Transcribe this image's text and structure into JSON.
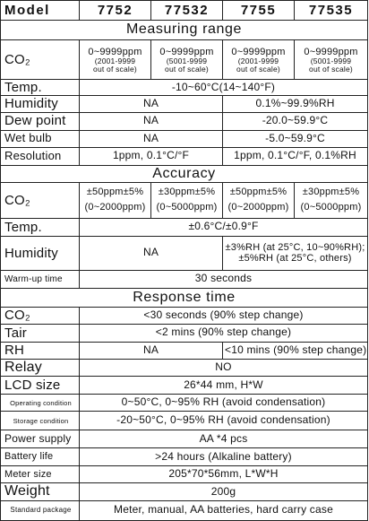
{
  "rows": [
    {
      "label": "Model",
      "cells": [
        [
          "7752"
        ],
        [
          "77532"
        ],
        [
          "7755"
        ],
        [
          "77535"
        ]
      ]
    },
    {
      "section": "Measuring range"
    },
    {
      "label": "CO₂",
      "cells": [
        [
          "0~9999ppm",
          "(2001-9999",
          "out of scale)"
        ],
        [
          "0~9999ppm",
          "(5001-9999",
          "out of scale)"
        ],
        [
          "0~9999ppm",
          "(2001-9999",
          "out of scale)"
        ],
        [
          "0~9999ppm",
          "(5001-9999",
          "out of scale)"
        ]
      ]
    },
    {
      "label": "Temp.",
      "cells": [
        [
          "-10~60°C(14~140°F)"
        ]
      ]
    },
    {
      "label": "Humidity",
      "cells": [
        [
          "NA"
        ],
        [
          "0.1%~99.9%RH"
        ]
      ]
    },
    {
      "label": "Dew point",
      "cells": [
        [
          "NA"
        ],
        [
          "-20.0~59.9°C"
        ]
      ]
    },
    {
      "label": "Wet bulb",
      "cells": [
        [
          "NA"
        ],
        [
          "-5.0~59.9°C"
        ]
      ]
    },
    {
      "label": "Resolution",
      "cells": [
        [
          "1ppm, 0.1°C/°F"
        ],
        [
          "1ppm, 0.1°C/°F, 0.1%RH"
        ]
      ]
    },
    {
      "section": "Accuracy"
    },
    {
      "label": "CO₂",
      "cells": [
        [
          "±50ppm±5%",
          "(0~2000ppm)"
        ],
        [
          "±30ppm±5%",
          "(0~5000ppm)"
        ],
        [
          "±50ppm±5%",
          "(0~2000ppm)"
        ],
        [
          "±30ppm±5%",
          "(0~5000ppm)"
        ]
      ]
    },
    {
      "label": "Temp.",
      "cells": [
        [
          "±0.6°C/±0.9°F"
        ]
      ]
    },
    {
      "label": "Humidity",
      "cells": [
        [
          "NA"
        ],
        [
          "±3%RH (at 25°C, 10~90%RH);",
          "±5%RH (at 25°C, others)"
        ]
      ]
    },
    {
      "label": "Warm-up time",
      "cells": [
        [
          "30 seconds"
        ]
      ]
    },
    {
      "section": "Response time"
    },
    {
      "label": "CO₂",
      "cells": [
        [
          "<30 seconds (90% step change)"
        ]
      ]
    },
    {
      "label": "Tair",
      "cells": [
        [
          "<2 mins (90% step change)"
        ]
      ]
    },
    {
      "label": "RH",
      "cells": [
        [
          "NA"
        ],
        [
          "<10 mins (90% step change)"
        ]
      ]
    },
    {
      "label": "Relay",
      "cells": [
        [
          "NO"
        ]
      ]
    },
    {
      "label": "LCD size",
      "cells": [
        [
          "26*44 mm, H*W"
        ]
      ]
    },
    {
      "label": "Operating condition",
      "cells": [
        [
          "0~50°C, 0~95% RH (avoid condensation)"
        ]
      ]
    },
    {
      "label": "Storage condition",
      "cells": [
        [
          "-20~50°C, 0~95% RH (avoid condensation)"
        ]
      ]
    },
    {
      "label": "Power supply",
      "cells": [
        [
          "AA *4 pcs"
        ]
      ]
    },
    {
      "label": "Battery life",
      "cells": [
        [
          ">24 hours (Alkaline battery)"
        ]
      ]
    },
    {
      "label": "Meter size",
      "cells": [
        [
          "205*70*56mm, L*W*H"
        ]
      ]
    },
    {
      "label": "Weight",
      "cells": [
        [
          "200g"
        ]
      ]
    },
    {
      "label": "Standard package",
      "cells": [
        [
          "Meter, manual, AA batteries, hard carry case"
        ]
      ]
    }
  ]
}
